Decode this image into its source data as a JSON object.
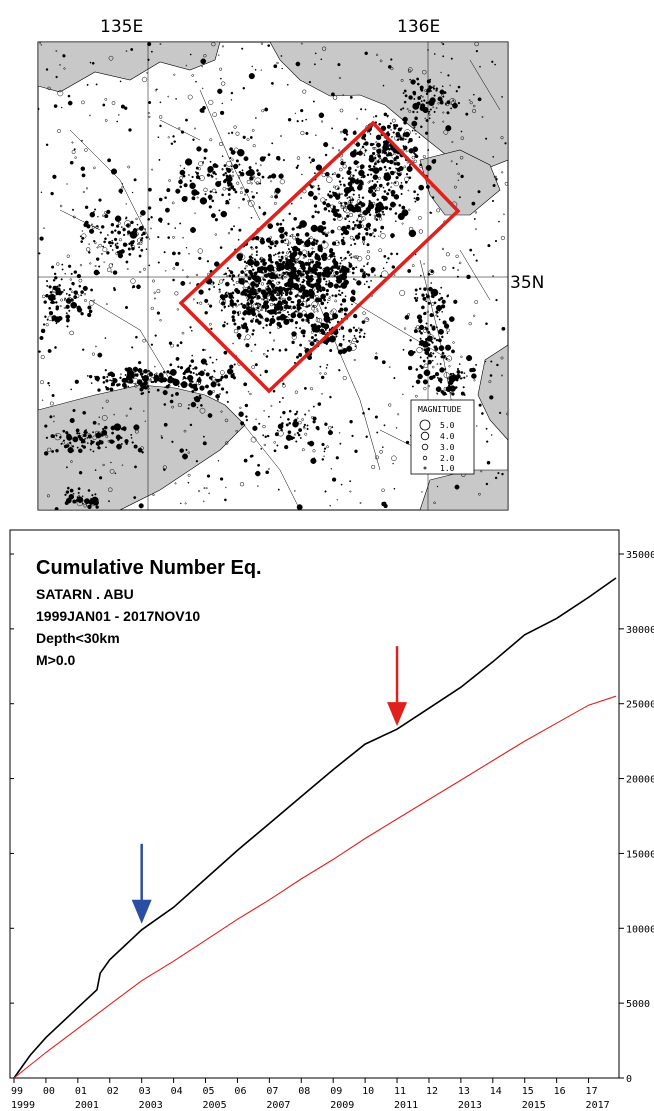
{
  "map": {
    "lon_labels": [
      "135E",
      "136E"
    ],
    "lat_label": "35N",
    "legend": {
      "title": "MAGNITUDE",
      "entries": [
        "5.0",
        "4.0",
        "3.0",
        "2.0",
        "1.0"
      ]
    },
    "region_box_color": "#e0201c",
    "land_fill": "#ffffff",
    "sea_fill": "#c8c8c8"
  },
  "chart_data": {
    "type": "line",
    "title": "Cumulative Number Eq.",
    "header_lines": [
      "SATARN . ABU",
      "1999JAN01 - 2017NOV10",
      "Depth<30km",
      "M>0.0"
    ],
    "x_top_ticks": [
      "99",
      "00",
      "01",
      "02",
      "03",
      "04",
      "05",
      "06",
      "07",
      "08",
      "09",
      "10",
      "11",
      "12",
      "13",
      "14",
      "15",
      "16",
      "17"
    ],
    "x_bottom_ticks": [
      "1999",
      "2001",
      "2003",
      "2005",
      "2007",
      "2009",
      "2011",
      "2013",
      "2015",
      "2017"
    ],
    "y_ticks": [
      "35000",
      "30000",
      "25000",
      "20000",
      "15000",
      "10000",
      "5000",
      "0"
    ],
    "ylim": [
      0,
      35000
    ],
    "xlim": [
      1999.0,
      2017.86
    ],
    "series": [
      {
        "color": "#000000",
        "x": [
          1999.0,
          1999.5,
          2000.0,
          2001.0,
          2001.6,
          2001.7,
          2002.0,
          2003.0,
          2004.0,
          2005.0,
          2006.0,
          2007.0,
          2008.0,
          2009.0,
          2010.0,
          2011.0,
          2012.0,
          2013.0,
          2014.0,
          2015.0,
          2016.0,
          2017.0,
          2017.86
        ],
        "values": [
          0,
          1500,
          2700,
          4700,
          5900,
          7000,
          7900,
          9900,
          11400,
          13300,
          15200,
          17000,
          18800,
          20600,
          22300,
          23300,
          24700,
          26100,
          27800,
          29600,
          30700,
          32100,
          33400
        ]
      },
      {
        "color": "#e0201c",
        "x": [
          1999.0,
          2000.0,
          2001.0,
          2002.0,
          2003.0,
          2004.0,
          2005.0,
          2006.0,
          2007.0,
          2008.0,
          2009.0,
          2010.0,
          2011.0,
          2012.0,
          2013.0,
          2014.0,
          2015.0,
          2016.0,
          2017.0,
          2017.86
        ],
        "values": [
          0,
          1700,
          3300,
          4900,
          6500,
          7800,
          9200,
          10600,
          11900,
          13300,
          14600,
          16000,
          17300,
          18600,
          19900,
          21200,
          22500,
          23700,
          24900,
          25500
        ]
      }
    ],
    "markers": [
      {
        "color": "#2b4ea5",
        "x": 2003.0,
        "y": 10300
      },
      {
        "color": "#e0201c",
        "x": 2011.0,
        "y": 23500
      }
    ]
  }
}
